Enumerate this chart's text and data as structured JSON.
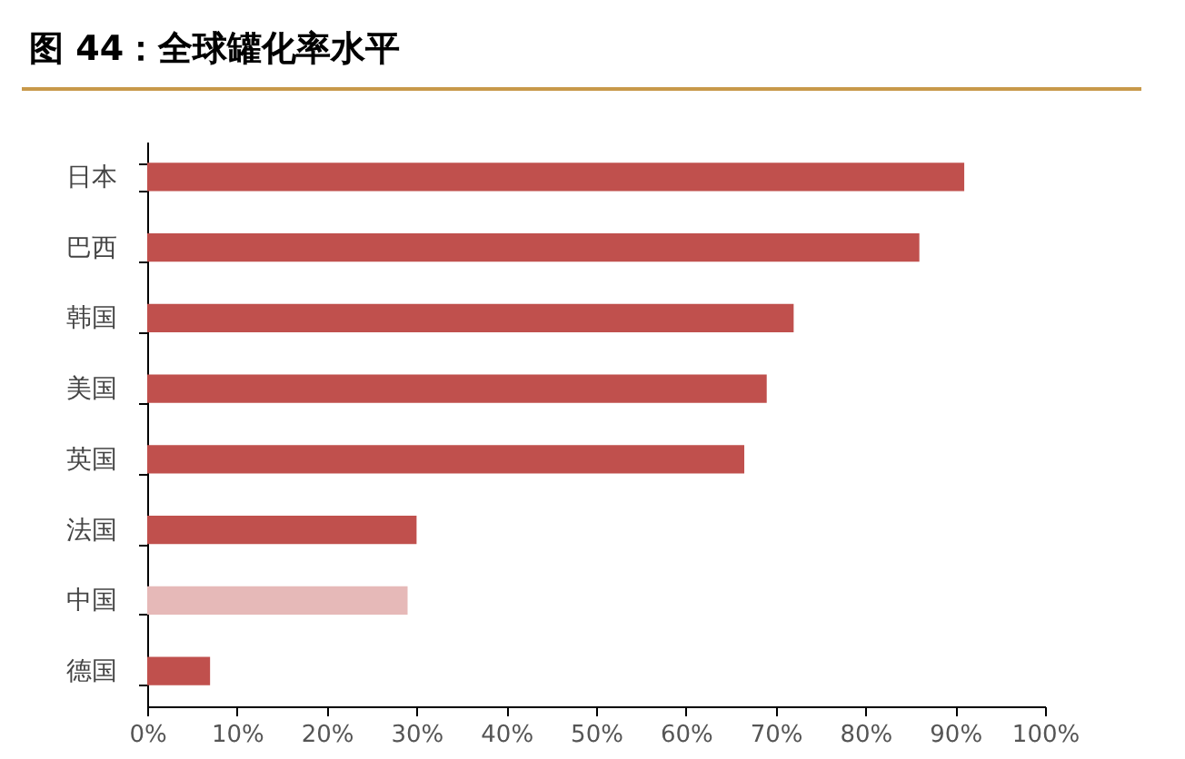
{
  "chart_data": {
    "type": "bar",
    "orientation": "horizontal",
    "title": "图 44：全球罐化率水平",
    "categories": [
      "日本",
      "巴西",
      "韩国",
      "美国",
      "英国",
      "法国",
      "中国",
      "德国"
    ],
    "values": [
      91,
      86,
      72,
      69,
      66.5,
      30,
      29,
      7
    ],
    "colors": [
      "#c0504d",
      "#c0504d",
      "#c0504d",
      "#c0504d",
      "#c0504d",
      "#c0504d",
      "#e6b9b8",
      "#c0504d"
    ],
    "xlim": [
      0,
      100
    ],
    "xticks": [
      {
        "value": 0,
        "label": "0%"
      },
      {
        "value": 10,
        "label": "10%"
      },
      {
        "value": 20,
        "label": "20%"
      },
      {
        "value": 30,
        "label": "30%"
      },
      {
        "value": 40,
        "label": "40%"
      },
      {
        "value": 50,
        "label": "50%"
      },
      {
        "value": 60,
        "label": "60%"
      },
      {
        "value": 70,
        "label": "70%"
      },
      {
        "value": 80,
        "label": "80%"
      },
      {
        "value": 90,
        "label": "90%"
      },
      {
        "value": 100,
        "label": "100%"
      }
    ],
    "grid": false
  }
}
